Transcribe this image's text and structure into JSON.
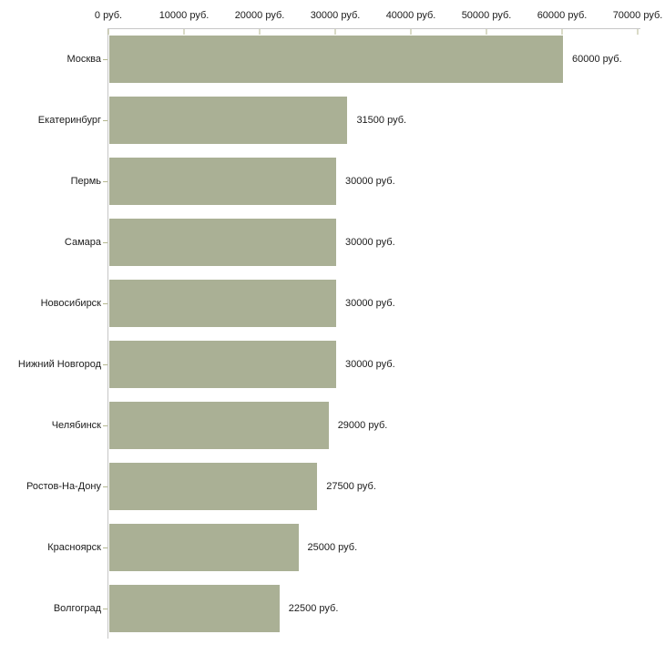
{
  "chart_data": {
    "type": "bar",
    "orientation": "horizontal",
    "title": "",
    "xlabel": "",
    "ylabel": "",
    "unit": "руб.",
    "categories": [
      "Москва",
      "Екатеринбург",
      "Пермь",
      "Самара",
      "Новосибирск",
      "Нижний Новгород",
      "Челябинск",
      "Ростов-На-Дону",
      "Красноярск",
      "Волгоград"
    ],
    "values": [
      60000,
      31500,
      30000,
      30000,
      30000,
      30000,
      29000,
      27500,
      25000,
      22500
    ],
    "value_labels": [
      "60000 руб.",
      "31500 руб.",
      "30000 руб.",
      "30000 руб.",
      "30000 руб.",
      "30000 руб.",
      "29000 руб.",
      "27500 руб.",
      "25000 руб.",
      "22500 руб."
    ],
    "x_tick_values": [
      0,
      10000,
      20000,
      30000,
      40000,
      50000,
      60000,
      70000
    ],
    "x_tick_labels": [
      "0 руб.",
      "10000 руб.",
      "20000 руб.",
      "30000 руб.",
      "40000 руб.",
      "50000 руб.",
      "60000 руб.",
      "70000 руб."
    ],
    "xlim": [
      0,
      70000
    ],
    "axis_position": "top",
    "grid": false,
    "legend": false,
    "colors": {
      "bar": "#aab095",
      "axis_line": "#c6c6c6",
      "tick": "#b4b78f",
      "text": "#1b1b1b",
      "background": "#ffffff"
    }
  }
}
